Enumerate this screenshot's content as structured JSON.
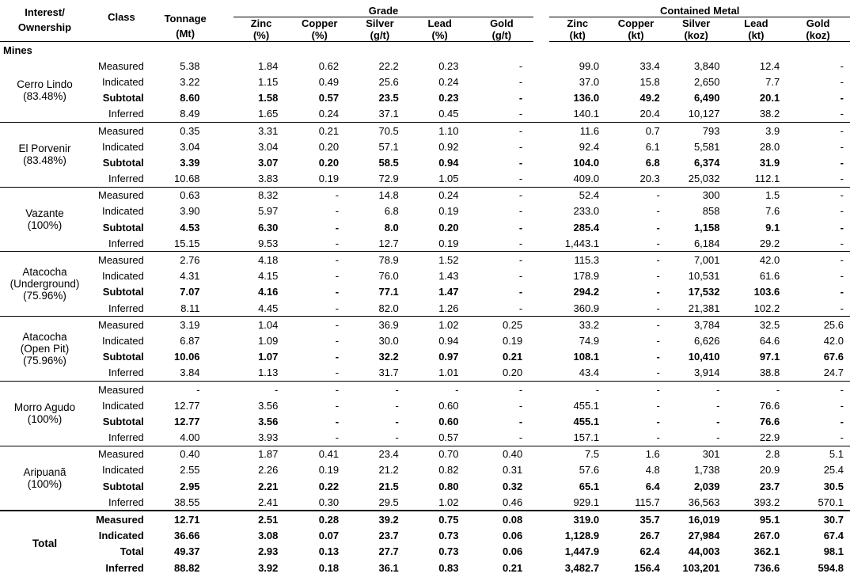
{
  "headers": {
    "interest": "Interest/",
    "ownership": "Ownership",
    "class": "Class",
    "tonnage": "Tonnage",
    "tonnage_unit": "(Mt)",
    "grade": "Grade",
    "contained": "Contained Metal",
    "grade_cols": [
      {
        "name": "Zinc",
        "unit": "(%)"
      },
      {
        "name": "Copper",
        "unit": "(%)"
      },
      {
        "name": "Silver",
        "unit": "(g/t)"
      },
      {
        "name": "Lead",
        "unit": "(%)"
      },
      {
        "name": "Gold",
        "unit": "(g/t)"
      }
    ],
    "metal_cols": [
      {
        "name": "Zinc",
        "unit": "(kt)"
      },
      {
        "name": "Copper",
        "unit": "(kt)"
      },
      {
        "name": "Silver",
        "unit": "(koz)"
      },
      {
        "name": "Lead",
        "unit": "(kt)"
      },
      {
        "name": "Gold",
        "unit": "(koz)"
      }
    ]
  },
  "section_label": "Mines",
  "groups": [
    {
      "name_lines": [
        "Cerro Lindo",
        "(83.48%)"
      ],
      "rows": [
        {
          "cls": "Measured",
          "bold": false,
          "vals": [
            "5.38",
            "1.84",
            "0.62",
            "22.2",
            "0.23",
            "-",
            "99.0",
            "33.4",
            "3,840",
            "12.4",
            "-"
          ]
        },
        {
          "cls": "Indicated",
          "bold": false,
          "vals": [
            "3.22",
            "1.15",
            "0.49",
            "25.6",
            "0.24",
            "-",
            "37.0",
            "15.8",
            "2,650",
            "7.7",
            "-"
          ]
        },
        {
          "cls": "Subtotal",
          "bold": true,
          "vals": [
            "8.60",
            "1.58",
            "0.57",
            "23.5",
            "0.23",
            "-",
            "136.0",
            "49.2",
            "6,490",
            "20.1",
            "-"
          ]
        },
        {
          "cls": "Inferred",
          "bold": false,
          "vals": [
            "8.49",
            "1.65",
            "0.24",
            "37.1",
            "0.45",
            "-",
            "140.1",
            "20.4",
            "10,127",
            "38.2",
            "-"
          ]
        }
      ]
    },
    {
      "name_lines": [
        "El Porvenir",
        "(83.48%)"
      ],
      "rows": [
        {
          "cls": "Measured",
          "bold": false,
          "vals": [
            "0.35",
            "3.31",
            "0.21",
            "70.5",
            "1.10",
            "-",
            "11.6",
            "0.7",
            "793",
            "3.9",
            "-"
          ]
        },
        {
          "cls": "Indicated",
          "bold": false,
          "vals": [
            "3.04",
            "3.04",
            "0.20",
            "57.1",
            "0.92",
            "-",
            "92.4",
            "6.1",
            "5,581",
            "28.0",
            "-"
          ]
        },
        {
          "cls": "Subtotal",
          "bold": true,
          "vals": [
            "3.39",
            "3.07",
            "0.20",
            "58.5",
            "0.94",
            "-",
            "104.0",
            "6.8",
            "6,374",
            "31.9",
            "-"
          ]
        },
        {
          "cls": "Inferred",
          "bold": false,
          "vals": [
            "10.68",
            "3.83",
            "0.19",
            "72.9",
            "1.05",
            "-",
            "409.0",
            "20.3",
            "25,032",
            "112.1",
            "-"
          ]
        }
      ]
    },
    {
      "name_lines": [
        "Vazante",
        "(100%)"
      ],
      "rows": [
        {
          "cls": "Measured",
          "bold": false,
          "vals": [
            "0.63",
            "8.32",
            "-",
            "14.8",
            "0.24",
            "-",
            "52.4",
            "-",
            "300",
            "1.5",
            "-"
          ]
        },
        {
          "cls": "Indicated",
          "bold": false,
          "vals": [
            "3.90",
            "5.97",
            "-",
            "6.8",
            "0.19",
            "-",
            "233.0",
            "-",
            "858",
            "7.6",
            "-"
          ]
        },
        {
          "cls": "Subtotal",
          "bold": true,
          "vals": [
            "4.53",
            "6.30",
            "-",
            "8.0",
            "0.20",
            "-",
            "285.4",
            "-",
            "1,158",
            "9.1",
            "-"
          ]
        },
        {
          "cls": "Inferred",
          "bold": false,
          "vals": [
            "15.15",
            "9.53",
            "-",
            "12.7",
            "0.19",
            "-",
            "1,443.1",
            "-",
            "6,184",
            "29.2",
            "-"
          ]
        }
      ]
    },
    {
      "name_lines": [
        "Atacocha",
        "(Underground)",
        "(75.96%)"
      ],
      "rows": [
        {
          "cls": "Measured",
          "bold": false,
          "vals": [
            "2.76",
            "4.18",
            "-",
            "78.9",
            "1.52",
            "-",
            "115.3",
            "-",
            "7,001",
            "42.0",
            "-"
          ]
        },
        {
          "cls": "Indicated",
          "bold": false,
          "vals": [
            "4.31",
            "4.15",
            "-",
            "76.0",
            "1.43",
            "-",
            "178.9",
            "-",
            "10,531",
            "61.6",
            "-"
          ]
        },
        {
          "cls": "Subtotal",
          "bold": true,
          "vals": [
            "7.07",
            "4.16",
            "-",
            "77.1",
            "1.47",
            "-",
            "294.2",
            "-",
            "17,532",
            "103.6",
            "-"
          ]
        },
        {
          "cls": "Inferred",
          "bold": false,
          "vals": [
            "8.11",
            "4.45",
            "-",
            "82.0",
            "1.26",
            "-",
            "360.9",
            "-",
            "21,381",
            "102.2",
            "-"
          ]
        }
      ]
    },
    {
      "name_lines": [
        "Atacocha",
        "(Open Pit)",
        "(75.96%)"
      ],
      "rows": [
        {
          "cls": "Measured",
          "bold": false,
          "vals": [
            "3.19",
            "1.04",
            "-",
            "36.9",
            "1.02",
            "0.25",
            "33.2",
            "-",
            "3,784",
            "32.5",
            "25.6"
          ]
        },
        {
          "cls": "Indicated",
          "bold": false,
          "vals": [
            "6.87",
            "1.09",
            "-",
            "30.0",
            "0.94",
            "0.19",
            "74.9",
            "-",
            "6,626",
            "64.6",
            "42.0"
          ]
        },
        {
          "cls": "Subtotal",
          "bold": true,
          "vals": [
            "10.06",
            "1.07",
            "-",
            "32.2",
            "0.97",
            "0.21",
            "108.1",
            "-",
            "10,410",
            "97.1",
            "67.6"
          ]
        },
        {
          "cls": "Inferred",
          "bold": false,
          "vals": [
            "3.84",
            "1.13",
            "-",
            "31.7",
            "1.01",
            "0.20",
            "43.4",
            "-",
            "3,914",
            "38.8",
            "24.7"
          ]
        }
      ]
    },
    {
      "name_lines": [
        "Morro Agudo",
        "(100%)"
      ],
      "rows": [
        {
          "cls": "Measured",
          "bold": false,
          "vals": [
            "-",
            "-",
            "-",
            "-",
            "-",
            "-",
            "-",
            "-",
            "-",
            "-",
            "-"
          ]
        },
        {
          "cls": "Indicated",
          "bold": false,
          "vals": [
            "12.77",
            "3.56",
            "-",
            "-",
            "0.60",
            "-",
            "455.1",
            "-",
            "-",
            "76.6",
            "-"
          ]
        },
        {
          "cls": "Subtotal",
          "bold": true,
          "vals": [
            "12.77",
            "3.56",
            "-",
            "-",
            "0.60",
            "-",
            "455.1",
            "-",
            "-",
            "76.6",
            "-"
          ]
        },
        {
          "cls": "Inferred",
          "bold": false,
          "vals": [
            "4.00",
            "3.93",
            "-",
            "-",
            "0.57",
            "-",
            "157.1",
            "-",
            "-",
            "22.9",
            "-"
          ]
        }
      ]
    },
    {
      "name_lines": [
        "Aripuanã",
        "(100%)"
      ],
      "rows": [
        {
          "cls": "Measured",
          "bold": false,
          "vals": [
            "0.40",
            "1.87",
            "0.41",
            "23.4",
            "0.70",
            "0.40",
            "7.5",
            "1.6",
            "301",
            "2.8",
            "5.1"
          ]
        },
        {
          "cls": "Indicated",
          "bold": false,
          "vals": [
            "2.55",
            "2.26",
            "0.19",
            "21.2",
            "0.82",
            "0.31",
            "57.6",
            "4.8",
            "1,738",
            "20.9",
            "25.4"
          ]
        },
        {
          "cls": "Subtotal",
          "bold": true,
          "vals": [
            "2.95",
            "2.21",
            "0.22",
            "21.5",
            "0.80",
            "0.32",
            "65.1",
            "6.4",
            "2,039",
            "23.7",
            "30.5"
          ]
        },
        {
          "cls": "Inferred",
          "bold": false,
          "vals": [
            "38.55",
            "2.41",
            "0.30",
            "29.5",
            "1.02",
            "0.46",
            "929.1",
            "115.7",
            "36,563",
            "393.2",
            "570.1"
          ]
        }
      ]
    }
  ],
  "total": {
    "label": "Total",
    "rows": [
      {
        "cls": "Measured",
        "vals": [
          "12.71",
          "2.51",
          "0.28",
          "39.2",
          "0.75",
          "0.08",
          "319.0",
          "35.7",
          "16,019",
          "95.1",
          "30.7"
        ]
      },
      {
        "cls": "Indicated",
        "vals": [
          "36.66",
          "3.08",
          "0.07",
          "23.7",
          "0.73",
          "0.06",
          "1,128.9",
          "26.7",
          "27,984",
          "267.0",
          "67.4"
        ]
      },
      {
        "cls": "Total",
        "vals": [
          "49.37",
          "2.93",
          "0.13",
          "27.7",
          "0.73",
          "0.06",
          "1,447.9",
          "62.4",
          "44,003",
          "362.1",
          "98.1"
        ]
      },
      {
        "cls": "Inferred",
        "vals": [
          "88.82",
          "3.92",
          "0.18",
          "36.1",
          "0.83",
          "0.21",
          "3,482.7",
          "156.4",
          "103,201",
          "736.6",
          "594.8"
        ]
      }
    ]
  }
}
